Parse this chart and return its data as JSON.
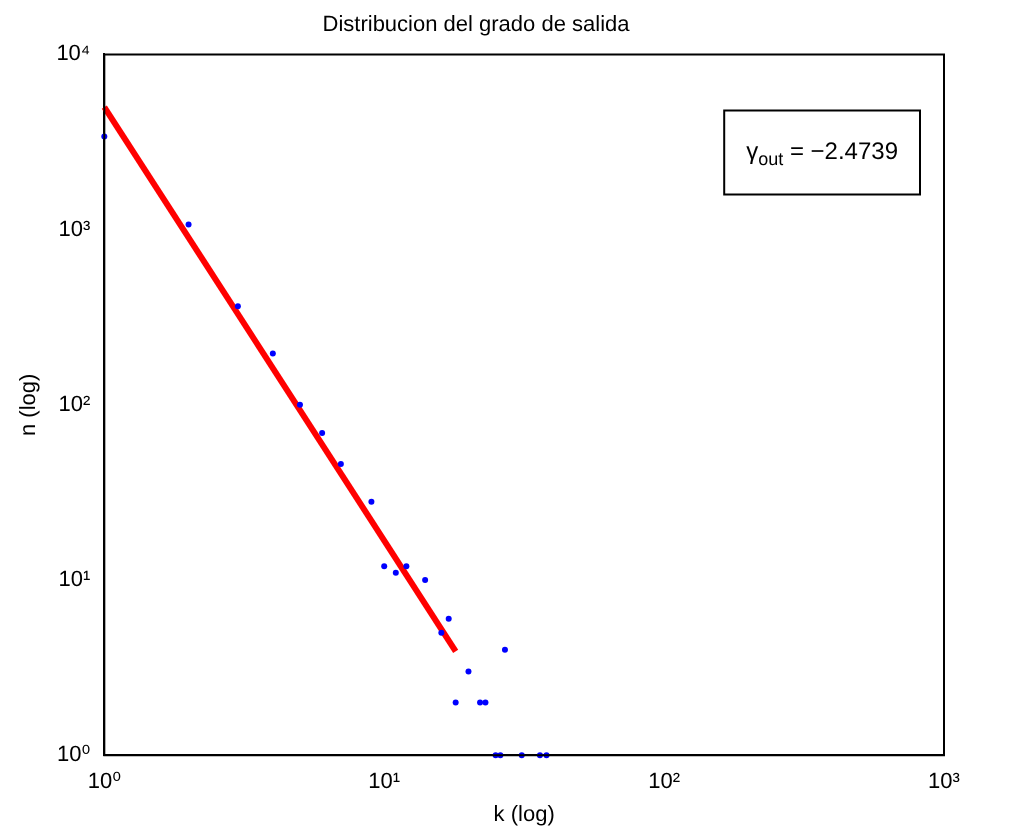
{
  "chart_data": {
    "type": "scatter",
    "title": "Distribucion del grado de salida",
    "xlabel": "k (log)",
    "ylabel": "n (log)",
    "log": "xy",
    "grid": false,
    "legend": false,
    "xlim": [
      1,
      1000
    ],
    "xticks": [
      {
        "value": 1,
        "label": "10⁰"
      },
      {
        "value": 10,
        "label": "10¹"
      },
      {
        "value": 100,
        "label": "10²"
      },
      {
        "value": 1000,
        "label": "10³"
      }
    ],
    "ylim": [
      1,
      10000
    ],
    "yticks": [
      {
        "value": 1,
        "label": "10⁰"
      },
      {
        "value": 10,
        "label": "10¹"
      },
      {
        "value": 100,
        "label": "10²"
      },
      {
        "value": 1000,
        "label": "10³"
      },
      {
        "value": 10000,
        "label": "10⁴"
      }
    ],
    "annotations": [
      "γ$_{out}$ = −2.4739"
    ],
    "series": [
      {
        "color": "#0000ff",
        "marker": "circle",
        "x": [
          1,
          2,
          3,
          4,
          5,
          6,
          7,
          9,
          10,
          11,
          12,
          14,
          16,
          17,
          18,
          20,
          22,
          23,
          25,
          26,
          27,
          31,
          36,
          38
        ],
        "values": [
          3400,
          1070,
          365,
          196,
          100,
          69,
          46,
          28,
          12,
          11,
          12,
          10,
          5,
          6,
          2,
          3,
          2,
          2,
          1,
          1,
          4,
          1,
          1,
          1
        ]
      },
      {
        "type": "line",
        "color": "#ff0000",
        "marker": "none",
        "line_style": "solid",
        "x": [
          1,
          18
        ],
        "values": [
          5000,
          3.92
        ]
      }
    ]
  }
}
